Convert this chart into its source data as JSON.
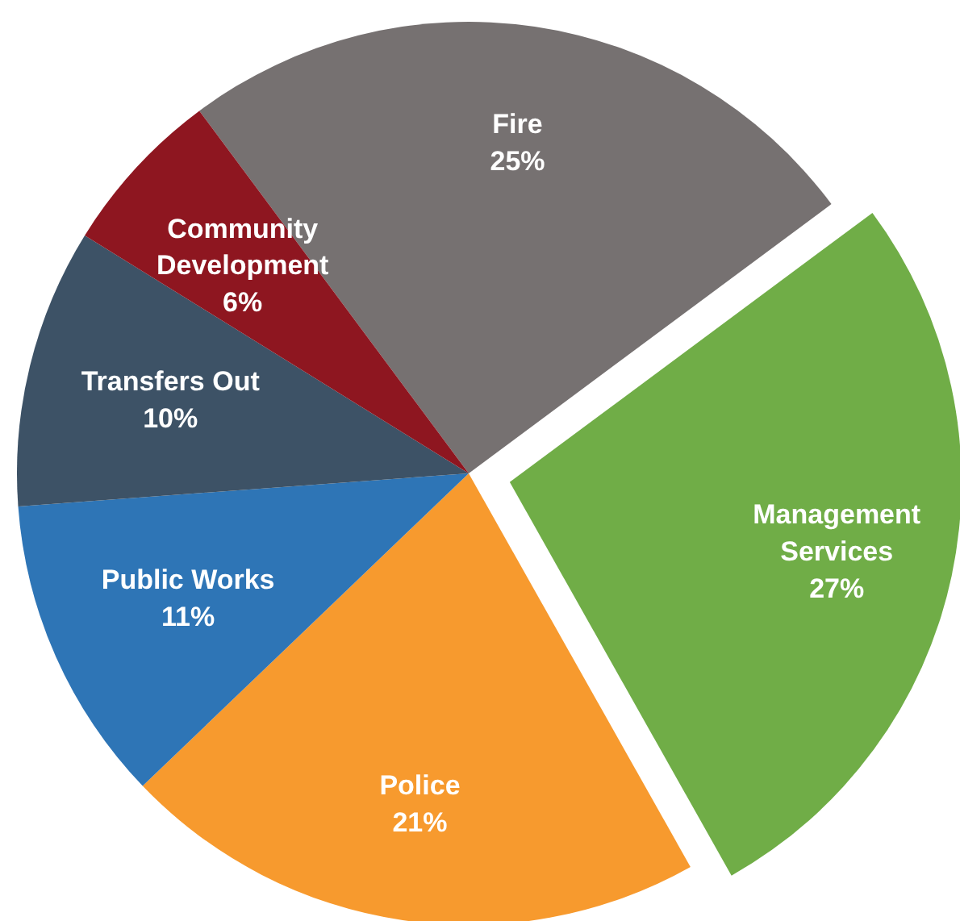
{
  "chart_data": {
    "type": "pie",
    "categories": [
      "Fire",
      "Management\nServices",
      "Police",
      "Public Works",
      "Transfers Out",
      "Community\nDevelopment"
    ],
    "values": [
      25,
      27,
      21,
      11,
      10,
      6
    ],
    "value_labels": [
      "25%",
      "27%",
      "21%",
      "11%",
      "10%",
      "6%"
    ],
    "colors": [
      "#767171",
      "#70ad47",
      "#f79a2e",
      "#2e75b6",
      "#3d5266",
      "#8e1620"
    ]
  }
}
